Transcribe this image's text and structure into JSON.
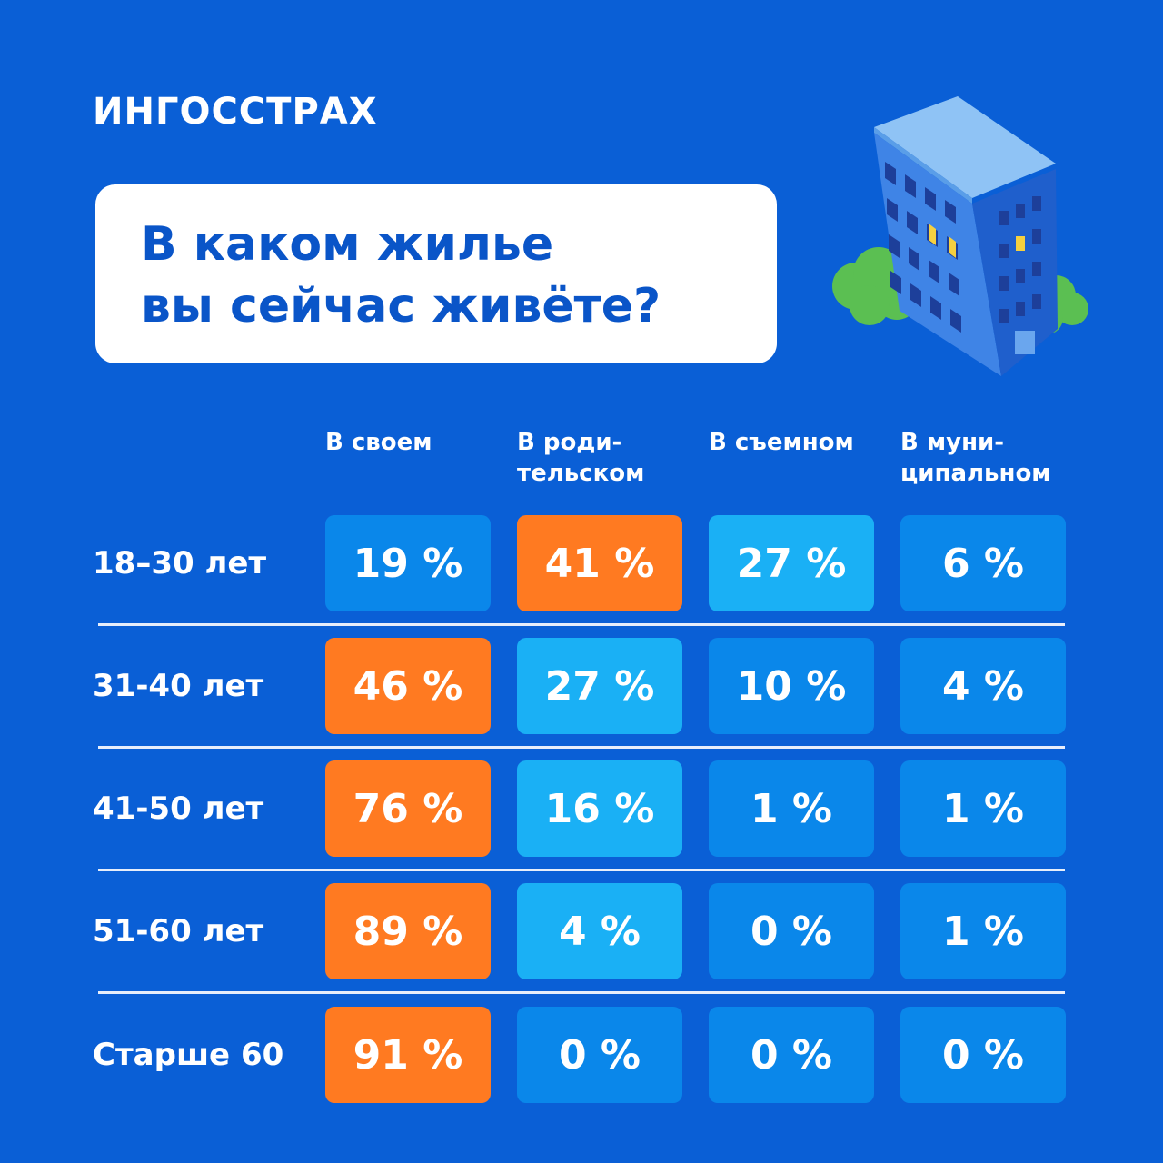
{
  "brand": {
    "logo_text": "ИНГОССТРАХ"
  },
  "title": {
    "line1": "В каком жилье",
    "line2": "вы сейчас живёте?"
  },
  "colors": {
    "background": "#0a5fd6",
    "hot": "#ff7a21",
    "mid": "#1ab0f5",
    "low": "#0a87ea"
  },
  "chart_data": {
    "type": "heatmap",
    "title": "В каком жилье вы сейчас живёте?",
    "columns": [
      "В своем",
      "В роди-\nтельском",
      "В съемном",
      "В муни-\nципальном"
    ],
    "rows": [
      "18–30 лет",
      "31-40 лет",
      "41-50 лет",
      "51-60 лет",
      "Старше 60"
    ],
    "unit": "%",
    "values": [
      [
        19,
        41,
        27,
        6
      ],
      [
        46,
        27,
        10,
        4
      ],
      [
        76,
        16,
        1,
        1
      ],
      [
        89,
        4,
        0,
        1
      ],
      [
        91,
        0,
        0,
        0
      ]
    ],
    "cell_labels": [
      [
        "19 %",
        "41 %",
        "27 %",
        "6 %"
      ],
      [
        "46 %",
        "27 %",
        "10 %",
        "4 %"
      ],
      [
        "76 %",
        "16 %",
        "1 %",
        "1 %"
      ],
      [
        "89 %",
        "4 %",
        "0 %",
        "1 %"
      ],
      [
        "91 %",
        "0 %",
        "0 %",
        "0 %"
      ]
    ],
    "highlight": [
      [
        "low",
        "hot",
        "mid",
        "low"
      ],
      [
        "hot",
        "mid",
        "low",
        "low"
      ],
      [
        "hot",
        "mid",
        "low",
        "low"
      ],
      [
        "hot",
        "mid",
        "low",
        "low"
      ],
      [
        "hot",
        "low",
        "low",
        "low"
      ]
    ]
  }
}
